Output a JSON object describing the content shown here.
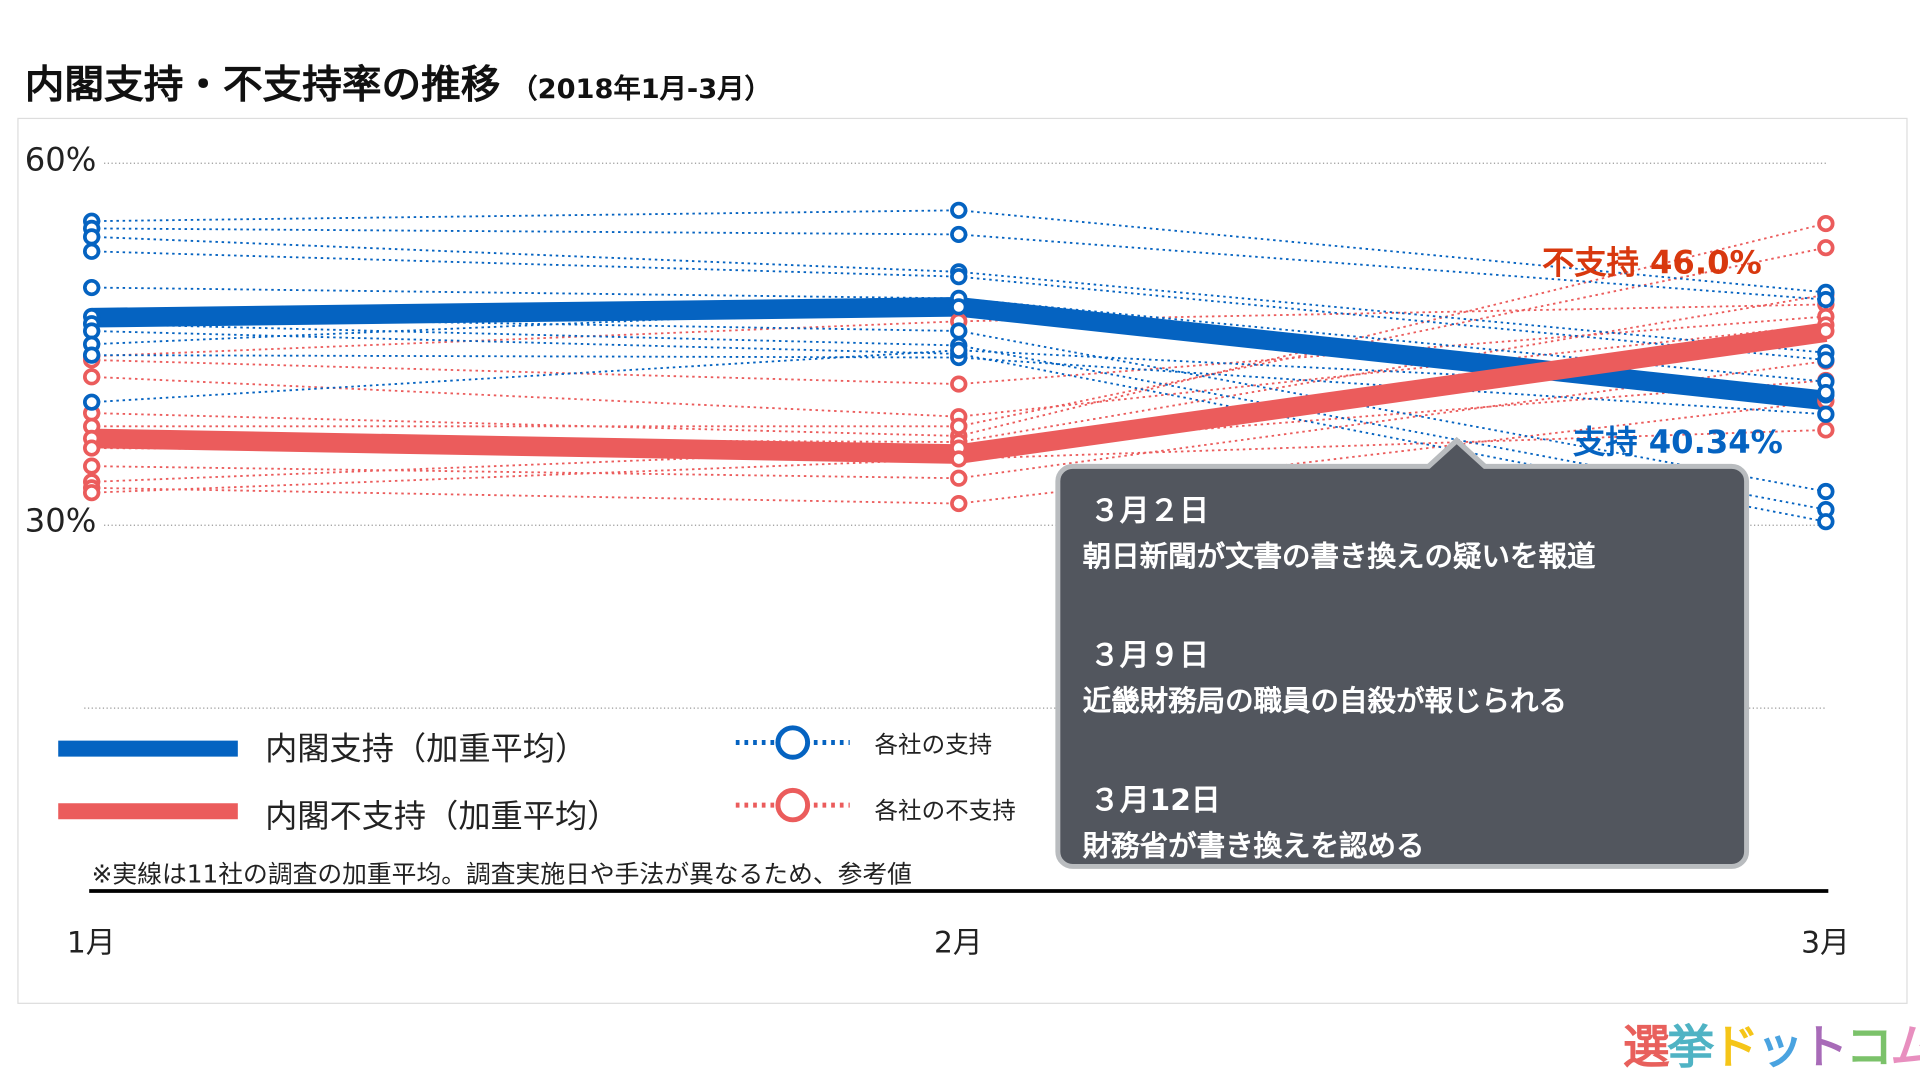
{
  "title": "内閣支持・不支持率の推移",
  "subtitle": "（2018年1月-3月）",
  "chart_data": {
    "type": "line",
    "title": "内閣支持・不支持率の推移",
    "subtitle": "（2018年1月-3月）",
    "categories": [
      "1月",
      "2月",
      "3月"
    ],
    "ylim": [
      30,
      60
    ],
    "yticks": [
      "60%",
      "30%"
    ],
    "ytick_values": [
      60,
      30
    ],
    "grid": true,
    "legend_position": "bottom-left",
    "series": [
      {
        "name": "内閣支持（加重平均）",
        "color": "#0563c1",
        "style": "solid",
        "values": [
          47.2,
          48.1,
          40.34
        ]
      },
      {
        "name": "内閣不支持（加重平均）",
        "color": "#eb5c5c",
        "style": "solid",
        "values": [
          37.2,
          35.9,
          46.0
        ]
      },
      {
        "name": "各社の支持",
        "color": "#0563c1",
        "style": "dotted",
        "lines": [
          [
            55.2,
            56.1,
            49.3
          ],
          [
            54.6,
            54.1,
            48.7
          ],
          [
            53.9,
            51.0,
            44.3
          ],
          [
            52.7,
            50.6,
            43.7
          ],
          [
            49.7,
            48.8,
            41.9
          ],
          [
            47.3,
            46.1,
            32.8
          ],
          [
            46.7,
            44.9,
            31.3
          ],
          [
            46.1,
            44.2,
            30.3
          ],
          [
            45.0,
            48.1,
            40.8
          ],
          [
            44.1,
            43.9,
            39.2
          ],
          [
            40.2,
            44.5,
            41.0
          ]
        ]
      },
      {
        "name": "各社の不支持",
        "color": "#eb5c5c",
        "style": "dotted",
        "lines": [
          [
            44.0,
            46.9,
            48.3
          ],
          [
            43.7,
            41.7,
            47.3
          ],
          [
            42.3,
            39.0,
            46.6
          ],
          [
            39.3,
            37.4,
            55.0
          ],
          [
            38.2,
            38.2,
            53.0
          ],
          [
            37.2,
            36.9,
            49.1
          ],
          [
            36.4,
            35.9,
            46.1
          ],
          [
            34.9,
            33.9,
            43.6
          ],
          [
            33.6,
            36.4,
            42.0
          ],
          [
            33.1,
            31.8,
            40.3
          ],
          [
            32.7,
            35.5,
            37.9
          ]
        ]
      }
    ],
    "annotations": {
      "support_label": "支持 40.34%",
      "nonsupport_label": "不支持 46.0%"
    }
  },
  "legend": {
    "support_avg": "内閣支持（加重平均）",
    "nonsupport_avg": "内閣不支持（加重平均）",
    "support_each": "各社の支持",
    "nonsupport_each": "各社の不支持"
  },
  "note": "※実線は11社の調査の加重平均。調査実施日や手法が異なるため、参考値",
  "events": [
    {
      "date": "３月２日",
      "text": "朝日新聞が文書の書き換えの疑いを報道"
    },
    {
      "date": "３月９日",
      "text": "近畿財務局の職員の自殺が報じられる"
    },
    {
      "date": "３月12日",
      "text": "財務省が書き換えを認める"
    }
  ],
  "logo": "選挙ドットコム",
  "logo_colors": [
    "#e8605c",
    "#4fb3c4",
    "#f5c518",
    "#4aa3e0",
    "#a86bb8",
    "#7bc26a",
    "#e88fbf"
  ]
}
